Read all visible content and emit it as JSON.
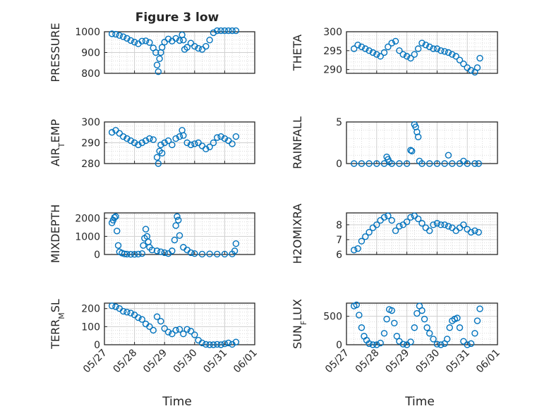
{
  "figure": {
    "title": "Figure 3 low",
    "xlabel": "Time"
  },
  "colors": {
    "marker": "#0072bd",
    "axes": "#262626",
    "grid": "#d0d0d0"
  },
  "chart_data": [
    {
      "type": "scatter",
      "ylabel": "PRESSURE",
      "ylim": [
        800,
        1000
      ],
      "yticks": [
        800,
        900,
        1000
      ],
      "show_xticks": false,
      "x": [
        "05/27 06:00",
        "05/27 09:00",
        "05/27 12:00",
        "05/27 15:00",
        "05/27 18:00",
        "05/27 21:00",
        "05/28 00:00",
        "05/28 03:00",
        "05/28 06:00",
        "05/28 09:00",
        "05/28 12:00",
        "05/28 15:00",
        "05/28 17:00",
        "05/28 18:00",
        "05/28 19:00",
        "05/28 20:00",
        "05/28 21:00",
        "05/28 22:00",
        "05/29 00:00",
        "05/29 03:00",
        "05/29 06:00",
        "05/29 09:00",
        "05/29 12:00",
        "05/29 14:00",
        "05/29 15:00",
        "05/29 16:00",
        "05/29 18:00",
        "05/29 21:00",
        "05/30 00:00",
        "05/30 03:00",
        "05/30 06:00",
        "05/30 09:00",
        "05/30 12:00",
        "05/30 15:00",
        "05/30 18:00",
        "05/30 21:00",
        "05/31 00:00",
        "05/31 03:00",
        "05/31 06:00",
        "05/31 09:00"
      ],
      "y": [
        990,
        988,
        982,
        976,
        968,
        958,
        950,
        942,
        955,
        956,
        948,
        922,
        900,
        840,
        808,
        870,
        900,
        925,
        950,
        965,
        955,
        968,
        958,
        985,
        960,
        915,
        925,
        945,
        930,
        920,
        915,
        930,
        960,
        995,
        1005,
        1005,
        1005,
        1005,
        1005,
        1005
      ]
    },
    {
      "type": "scatter",
      "ylabel": "THETA",
      "ylim": [
        289,
        300
      ],
      "yticks": [
        290,
        295,
        300
      ],
      "show_xticks": false,
      "x": [
        "05/27 06:00",
        "05/27 09:00",
        "05/27 12:00",
        "05/27 15:00",
        "05/27 18:00",
        "05/27 21:00",
        "05/28 00:00",
        "05/28 03:00",
        "05/28 06:00",
        "05/28 09:00",
        "05/28 12:00",
        "05/28 15:00",
        "05/28 18:00",
        "05/28 21:00",
        "05/29 00:00",
        "05/29 03:00",
        "05/29 06:00",
        "05/29 09:00",
        "05/29 12:00",
        "05/29 15:00",
        "05/29 18:00",
        "05/29 21:00",
        "05/30 00:00",
        "05/30 03:00",
        "05/30 06:00",
        "05/30 09:00",
        "05/30 12:00",
        "05/30 15:00",
        "05/30 18:00",
        "05/30 21:00",
        "05/31 00:00",
        "05/31 03:00",
        "05/31 06:00",
        "05/31 08:00",
        "05/31 10:00"
      ],
      "y": [
        295.5,
        296.5,
        296,
        295.5,
        295,
        294.5,
        294,
        293.5,
        294.5,
        296,
        297,
        297.5,
        295,
        294,
        293.5,
        293,
        294,
        295.5,
        297,
        296.5,
        296,
        295.5,
        295.5,
        295,
        294.8,
        294.5,
        294,
        293.5,
        292.5,
        291.5,
        290.5,
        289.8,
        289.3,
        290.5,
        293
      ]
    },
    {
      "type": "scatter",
      "ylabel": "AIR_TEMP",
      "ylim": [
        280,
        300
      ],
      "yticks": [
        280,
        290,
        300
      ],
      "show_xticks": false,
      "x": [
        "05/27 06:00",
        "05/27 09:00",
        "05/27 12:00",
        "05/27 15:00",
        "05/27 18:00",
        "05/27 21:00",
        "05/28 00:00",
        "05/28 03:00",
        "05/28 06:00",
        "05/28 09:00",
        "05/28 12:00",
        "05/28 15:00",
        "05/28 18:00",
        "05/28 19:00",
        "05/28 20:00",
        "05/28 21:00",
        "05/28 22:00",
        "05/29 00:00",
        "05/29 03:00",
        "05/29 06:00",
        "05/29 09:00",
        "05/29 12:00",
        "05/29 14:00",
        "05/29 15:00",
        "05/29 18:00",
        "05/29 21:00",
        "05/30 00:00",
        "05/30 03:00",
        "05/30 06:00",
        "05/30 09:00",
        "05/30 12:00",
        "05/30 15:00",
        "05/30 18:00",
        "05/30 21:00",
        "05/31 00:00",
        "05/31 03:00",
        "05/31 06:00",
        "05/31 09:00"
      ],
      "y": [
        295,
        296,
        294.5,
        293,
        292,
        291,
        290,
        289,
        290,
        291,
        292,
        291.5,
        283,
        280,
        286,
        289,
        285,
        290,
        291,
        289,
        292,
        293,
        296,
        293.5,
        290,
        289,
        289.5,
        290,
        288.5,
        287,
        288,
        290,
        292.5,
        293,
        292,
        291,
        289.5,
        293
      ]
    },
    {
      "type": "scatter",
      "ylabel": "RAINFALL",
      "ylim": [
        0,
        5
      ],
      "yticks": [
        0,
        5
      ],
      "show_xticks": false,
      "x": [
        "05/27 06:00",
        "05/27 12:00",
        "05/27 18:00",
        "05/28 00:00",
        "05/28 06:00",
        "05/28 08:00",
        "05/28 09:00",
        "05/28 10:00",
        "05/28 12:00",
        "05/28 18:00",
        "05/29 00:00",
        "05/29 03:00",
        "05/29 04:00",
        "05/29 06:00",
        "05/29 07:00",
        "05/29 08:00",
        "05/29 09:00",
        "05/29 10:00",
        "05/29 12:00",
        "05/29 18:00",
        "05/30 00:00",
        "05/30 06:00",
        "05/30 09:00",
        "05/30 12:00",
        "05/30 18:00",
        "05/30 21:00",
        "05/31 00:00",
        "05/31 06:00",
        "05/31 09:00"
      ],
      "y": [
        0,
        0,
        0,
        0,
        0,
        0.8,
        0.5,
        0.2,
        0,
        0,
        0,
        1.6,
        1.5,
        4.7,
        4.4,
        3.8,
        3.2,
        0.3,
        0,
        0,
        0,
        0,
        1.0,
        0,
        0,
        0.3,
        0,
        0,
        0
      ]
    },
    {
      "type": "scatter",
      "ylabel": "MIXDEPTH",
      "ylim": [
        0,
        2300
      ],
      "yticks": [
        0,
        1000,
        2000
      ],
      "show_xticks": false,
      "x": [
        "05/27 06:00",
        "05/27 07:00",
        "05/27 08:00",
        "05/27 09:00",
        "05/27 10:00",
        "05/27 11:00",
        "05/27 12:00",
        "05/27 14:00",
        "05/27 16:00",
        "05/27 18:00",
        "05/27 21:00",
        "05/28 00:00",
        "05/28 03:00",
        "05/28 06:00",
        "05/28 07:00",
        "05/28 08:00",
        "05/28 09:00",
        "05/28 10:00",
        "05/28 11:00",
        "05/28 12:00",
        "05/28 14:00",
        "05/28 18:00",
        "05/28 21:00",
        "05/29 00:00",
        "05/29 03:00",
        "05/29 06:00",
        "05/29 08:00",
        "05/29 09:00",
        "05/29 10:00",
        "05/29 11:00",
        "05/29 12:00",
        "05/29 15:00",
        "05/29 18:00",
        "05/29 21:00",
        "05/30 00:00",
        "05/30 06:00",
        "05/30 12:00",
        "05/30 18:00",
        "05/31 00:00",
        "05/31 06:00",
        "05/31 08:00",
        "05/31 09:00"
      ],
      "y": [
        1750,
        1900,
        2050,
        2100,
        1300,
        500,
        150,
        80,
        30,
        20,
        10,
        10,
        20,
        50,
        500,
        900,
        1400,
        1000,
        700,
        400,
        250,
        200,
        150,
        100,
        50,
        200,
        800,
        1600,
        2100,
        1900,
        1050,
        400,
        250,
        100,
        50,
        20,
        30,
        20,
        20,
        30,
        200,
        600
      ]
    },
    {
      "type": "scatter",
      "ylabel": "H2OMIXRA",
      "ylim": [
        6,
        8.8
      ],
      "yticks": [
        6,
        7,
        8
      ],
      "show_xticks": false,
      "x": [
        "05/27 06:00",
        "05/27 09:00",
        "05/27 12:00",
        "05/27 15:00",
        "05/27 18:00",
        "05/27 21:00",
        "05/28 00:00",
        "05/28 03:00",
        "05/28 06:00",
        "05/28 09:00",
        "05/28 12:00",
        "05/28 15:00",
        "05/28 18:00",
        "05/28 21:00",
        "05/29 00:00",
        "05/29 03:00",
        "05/29 06:00",
        "05/29 09:00",
        "05/29 12:00",
        "05/29 15:00",
        "05/29 18:00",
        "05/29 21:00",
        "05/30 00:00",
        "05/30 03:00",
        "05/30 06:00",
        "05/30 09:00",
        "05/30 12:00",
        "05/30 15:00",
        "05/30 18:00",
        "05/30 21:00",
        "05/31 00:00",
        "05/31 03:00",
        "05/31 06:00",
        "05/31 09:00"
      ],
      "y": [
        6.3,
        6.4,
        6.9,
        7.2,
        7.5,
        7.8,
        8.0,
        8.3,
        8.5,
        8.6,
        8.3,
        7.6,
        7.9,
        8.0,
        8.2,
        8.5,
        8.6,
        8.4,
        8.1,
        7.8,
        7.6,
        8.0,
        8.1,
        8.0,
        8.0,
        7.9,
        7.8,
        7.6,
        7.8,
        8.0,
        7.7,
        7.5,
        7.6,
        7.5
      ]
    },
    {
      "type": "scatter",
      "ylabel": "TERR_MSL",
      "ylim": [
        0,
        230
      ],
      "yticks": [
        0,
        100,
        200
      ],
      "show_xticks": true,
      "x": [
        "05/27 06:00",
        "05/27 09:00",
        "05/27 12:00",
        "05/27 15:00",
        "05/27 18:00",
        "05/27 21:00",
        "05/28 00:00",
        "05/28 03:00",
        "05/28 06:00",
        "05/28 09:00",
        "05/28 12:00",
        "05/28 15:00",
        "05/28 18:00",
        "05/28 21:00",
        "05/29 00:00",
        "05/29 03:00",
        "05/29 06:00",
        "05/29 09:00",
        "05/29 12:00",
        "05/29 15:00",
        "05/29 18:00",
        "05/29 21:00",
        "05/30 00:00",
        "05/30 03:00",
        "05/30 06:00",
        "05/30 09:00",
        "05/30 12:00",
        "05/30 15:00",
        "05/30 18:00",
        "05/30 21:00",
        "05/31 00:00",
        "05/31 03:00",
        "05/31 06:00",
        "05/31 09:00"
      ],
      "y": [
        215,
        210,
        200,
        185,
        180,
        175,
        165,
        150,
        140,
        115,
        100,
        80,
        155,
        130,
        90,
        70,
        60,
        80,
        85,
        60,
        85,
        75,
        55,
        25,
        10,
        2,
        0,
        0,
        2,
        0,
        5,
        10,
        2,
        15
      ]
    },
    {
      "type": "scatter",
      "ylabel": "SUN_FLUX",
      "ylim": [
        0,
        730
      ],
      "yticks": [
        0,
        500
      ],
      "show_xticks": true,
      "x": [
        "05/27 06:00",
        "05/27 08:00",
        "05/27 10:00",
        "05/27 12:00",
        "05/27 14:00",
        "05/27 16:00",
        "05/27 18:00",
        "05/27 21:00",
        "05/28 00:00",
        "05/28 03:00",
        "05/28 06:00",
        "05/28 08:00",
        "05/28 10:00",
        "05/28 12:00",
        "05/28 14:00",
        "05/28 16:00",
        "05/28 18:00",
        "05/28 21:00",
        "05/29 00:00",
        "05/29 03:00",
        "05/29 06:00",
        "05/29 08:00",
        "05/29 10:00",
        "05/29 12:00",
        "05/29 14:00",
        "05/29 16:00",
        "05/29 18:00",
        "05/29 21:00",
        "05/30 00:00",
        "05/30 03:00",
        "05/30 06:00",
        "05/30 08:00",
        "05/30 10:00",
        "05/30 12:00",
        "05/30 14:00",
        "05/30 16:00",
        "05/30 18:00",
        "05/30 21:00",
        "05/31 00:00",
        "05/31 03:00",
        "05/31 06:00",
        "05/31 08:00",
        "05/31 10:00"
      ],
      "y": [
        680,
        700,
        520,
        300,
        150,
        80,
        20,
        0,
        0,
        30,
        200,
        450,
        620,
        600,
        380,
        150,
        60,
        10,
        0,
        50,
        300,
        550,
        680,
        600,
        450,
        300,
        200,
        100,
        10,
        0,
        20,
        100,
        300,
        420,
        450,
        470,
        300,
        60,
        0,
        20,
        200,
        420,
        630
      ]
    }
  ],
  "x_axis": {
    "range": [
      "05/27 00:00",
      "06/01 00:00"
    ],
    "ticks": [
      "05/27",
      "05/28",
      "05/29",
      "05/30",
      "05/31",
      "06/01"
    ]
  }
}
